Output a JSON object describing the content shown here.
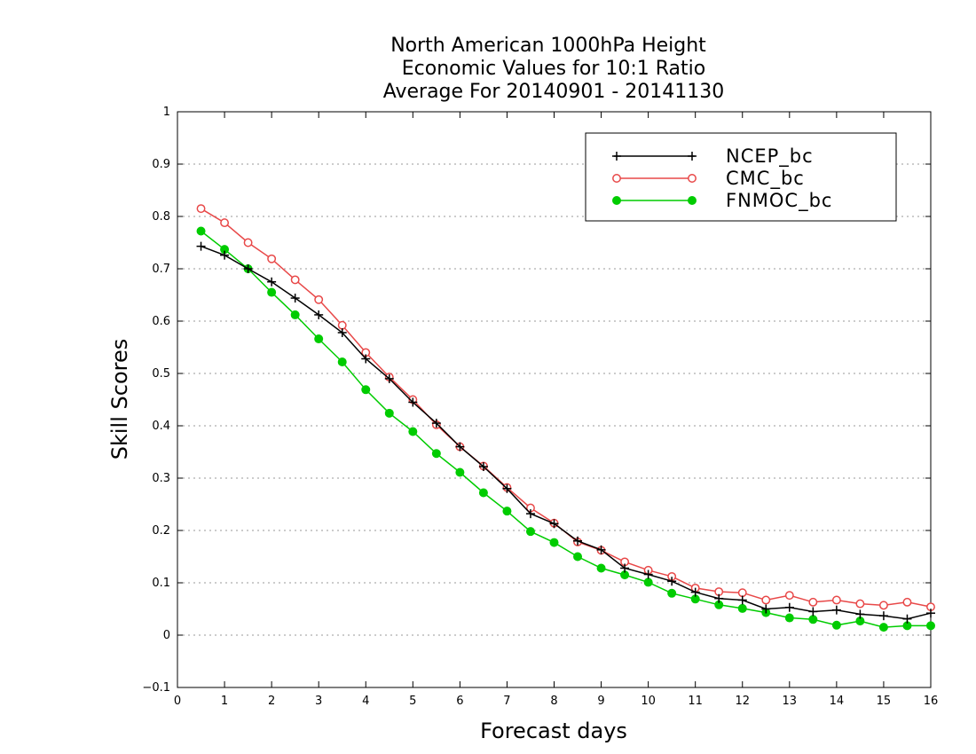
{
  "chart_data": {
    "type": "line",
    "title_lines": [
      "North American 1000hPa Height",
      "Economic Values for 10:1 Ratio",
      "Average For 20140901 - 20141130"
    ],
    "xlabel": "Forecast days",
    "ylabel": "Skill Scores",
    "xlim": [
      0,
      16
    ],
    "ylim": [
      -0.1,
      1
    ],
    "x_ticks": [
      "0",
      "1",
      "2",
      "3",
      "4",
      "5",
      "6",
      "7",
      "8",
      "9",
      "10",
      "11",
      "12",
      "13",
      "14",
      "15",
      "16"
    ],
    "y_ticks": [
      "−0.1",
      "0",
      "0.1",
      "0.2",
      "0.3",
      "0.4",
      "0.5",
      "0.6",
      "0.7",
      "0.8",
      "0.9",
      "1"
    ],
    "grid": "horizontal dotted",
    "legend_position": "top-right",
    "x": [
      0.5,
      1,
      1.5,
      2,
      2.5,
      3,
      3.5,
      4,
      4.5,
      5,
      5.5,
      6,
      6.5,
      7,
      7.5,
      8,
      8.5,
      9,
      9.5,
      10,
      10.5,
      11,
      11.5,
      12,
      12.5,
      13,
      13.5,
      14,
      14.5,
      15,
      15.5,
      16
    ],
    "series": [
      {
        "name": "NCEP_bc",
        "color": "#000000",
        "marker": "plus",
        "values": [
          0.743,
          0.726,
          0.7,
          0.675,
          0.644,
          0.612,
          0.578,
          0.528,
          0.49,
          0.445,
          0.405,
          0.36,
          0.322,
          0.28,
          0.232,
          0.213,
          0.18,
          0.163,
          0.128,
          0.116,
          0.103,
          0.082,
          0.07,
          0.067,
          0.05,
          0.053,
          0.045,
          0.048,
          0.04,
          0.037,
          0.031,
          0.042
        ]
      },
      {
        "name": "CMC_bc",
        "color": "#e84848",
        "marker": "open-circle",
        "values": [
          0.815,
          0.788,
          0.75,
          0.719,
          0.679,
          0.641,
          0.592,
          0.54,
          0.493,
          0.45,
          0.402,
          0.36,
          0.323,
          0.282,
          0.243,
          0.214,
          0.178,
          0.162,
          0.14,
          0.124,
          0.112,
          0.09,
          0.083,
          0.081,
          0.067,
          0.076,
          0.063,
          0.067,
          0.06,
          0.057,
          0.063,
          0.054
        ]
      },
      {
        "name": "FNMOC_bc",
        "color": "#00cc00",
        "marker": "filled-circle",
        "values": [
          0.772,
          0.737,
          0.7,
          0.655,
          0.612,
          0.566,
          0.522,
          0.469,
          0.424,
          0.389,
          0.347,
          0.311,
          0.272,
          0.237,
          0.198,
          0.177,
          0.15,
          0.128,
          0.115,
          0.101,
          0.08,
          0.069,
          0.058,
          0.051,
          0.043,
          0.033,
          0.03,
          0.019,
          0.027,
          0.015,
          0.018,
          0.018
        ]
      }
    ]
  }
}
